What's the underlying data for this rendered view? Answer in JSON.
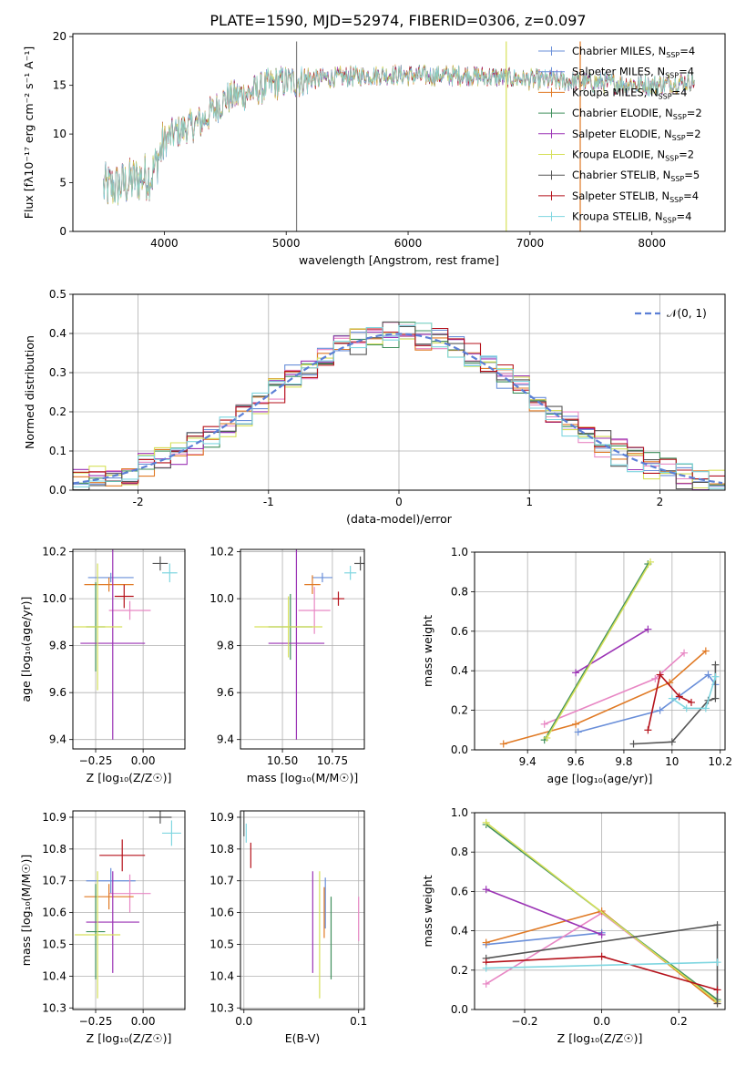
{
  "figure_title": "PLATE=1590, MJD=52974, FIBERID=0306, z=0.097",
  "models": [
    {
      "name": "Chabrier MILES",
      "nssp": "4",
      "color": "#6a8fd9"
    },
    {
      "name": "Salpeter MILES",
      "nssp": "4",
      "color": "#6a8fd9"
    },
    {
      "name": "Kroupa MILES",
      "nssp": "4",
      "color": "#e07a25"
    },
    {
      "name": "Chabrier ELODIE",
      "nssp": "2",
      "color": "#3f8f5c"
    },
    {
      "name": "Salpeter ELODIE",
      "nssp": "2",
      "color": "#9b33b5"
    },
    {
      "name": "Kroupa ELODIE",
      "nssp": "2",
      "color": "#d6e05a"
    },
    {
      "name": "Chabrier STELIB",
      "nssp": "5",
      "color": "#555555"
    },
    {
      "name": "Salpeter STELIB",
      "nssp": "4",
      "color": "#b5121b"
    },
    {
      "name": "Kroupa STELIB",
      "nssp": "4",
      "color": "#7fd6e0"
    }
  ],
  "chart_data": [
    {
      "id": "spectrum",
      "type": "line",
      "title": "PLATE=1590, MJD=52974, FIBERID=0306, z=0.097",
      "xlabel": "wavelength [Angstrom, rest frame]",
      "ylabel": "Flux [fλ10⁻¹⁷ erg cm⁻² s⁻¹ A⁻¹]",
      "xlim": [
        3250,
        8600
      ],
      "ylim": [
        0,
        20.3
      ],
      "xticks": [
        4000,
        5000,
        6000,
        7000,
        8000
      ],
      "yticks": [
        0,
        5,
        10,
        15,
        20
      ],
      "continuum": [
        [
          3500,
          4.5
        ],
        [
          3650,
          4.7
        ],
        [
          3800,
          5.5
        ],
        [
          3900,
          5.8
        ],
        [
          4000,
          9.3
        ],
        [
          4100,
          10.2
        ],
        [
          4300,
          11.2
        ],
        [
          4500,
          13.6
        ],
        [
          4700,
          14.2
        ],
        [
          4900,
          15.2
        ],
        [
          5200,
          15.6
        ],
        [
          5500,
          15.9
        ],
        [
          5800,
          16.1
        ],
        [
          6100,
          16.0
        ],
        [
          6500,
          16.0
        ],
        [
          7000,
          15.6
        ],
        [
          7500,
          15.3
        ],
        [
          8000,
          15.0
        ],
        [
          8350,
          15.4
        ]
      ],
      "spikes": [
        [
          5080,
          0
        ],
        [
          5090,
          0
        ],
        [
          6800,
          0
        ],
        [
          6810,
          0
        ],
        [
          7410,
          0
        ],
        [
          7415,
          0
        ]
      ],
      "grid": false,
      "legend": "top-right"
    },
    {
      "id": "residuals",
      "type": "line",
      "xlabel": "(data-model)/error",
      "ylabel": "Normed distribution",
      "xlim": [
        -2.5,
        2.5
      ],
      "ylim": [
        0,
        0.5
      ],
      "xticks": [
        -2,
        -1,
        0,
        1,
        2
      ],
      "yticks": [
        0.0,
        0.1,
        0.2,
        0.3,
        0.4,
        0.5
      ],
      "gaussian_label": "𝒩(0, 1)",
      "grid": true,
      "legend": "top-right"
    },
    {
      "id": "age_vs_Z",
      "type": "scatter",
      "xlabel": "Z [log₁₀(Z/Z☉)]",
      "ylabel": "age  [log₁₀(age/yr)]",
      "xlim": [
        -0.37,
        0.22
      ],
      "ylim": [
        9.36,
        10.21
      ],
      "xticks": [
        -0.25,
        0.0
      ],
      "xticklabels": [
        "−0.25",
        "0.00"
      ],
      "yticks": [
        9.4,
        9.6,
        9.8,
        10.0,
        10.2
      ],
      "points": [
        {
          "m": 0,
          "x": -0.17,
          "y": 10.09,
          "xe": 0.12,
          "ye": 0.02
        },
        {
          "m": 1,
          "x": -0.07,
          "y": 9.95,
          "xe": 0.11,
          "ye": 0.04
        },
        {
          "m": 2,
          "x": -0.18,
          "y": 10.06,
          "xe": 0.13,
          "ye": 0.03
        },
        {
          "m": 3,
          "x": -0.25,
          "y": 9.88,
          "xe": 0.05,
          "ye": 0.19
        },
        {
          "m": 4,
          "x": -0.16,
          "y": 9.81,
          "xe": 0.17,
          "ye": 0.41
        },
        {
          "m": 5,
          "x": -0.24,
          "y": 9.88,
          "xe": 0.13,
          "ye": 0.27
        },
        {
          "m": 6,
          "x": 0.09,
          "y": 10.15,
          "xe": 0.04,
          "ye": 0.03
        },
        {
          "m": 7,
          "x": -0.1,
          "y": 10.01,
          "xe": 0.05,
          "ye": 0.05
        },
        {
          "m": 8,
          "x": 0.14,
          "y": 10.11,
          "xe": 0.04,
          "ye": 0.04
        }
      ],
      "grid": true
    },
    {
      "id": "age_vs_mass",
      "type": "scatter",
      "xlabel": "mass [log₁₀(M/M☉)]",
      "ylabel": "",
      "xlim": [
        10.29,
        10.91
      ],
      "ylim": [
        9.36,
        10.21
      ],
      "xticks": [
        10.5,
        10.75
      ],
      "xticklabels": [
        "10.50",
        "10.75"
      ],
      "yticks": [
        9.4,
        9.6,
        9.8,
        10.0,
        10.2
      ],
      "points": [
        {
          "m": 0,
          "x": 10.7,
          "y": 10.09,
          "xe": 0.05,
          "ye": 0.02
        },
        {
          "m": 1,
          "x": 10.66,
          "y": 9.95,
          "xe": 0.08,
          "ye": 0.1
        },
        {
          "m": 2,
          "x": 10.65,
          "y": 10.06,
          "xe": 0.04,
          "ye": 0.04
        },
        {
          "m": 3,
          "x": 10.54,
          "y": 9.88,
          "xe": 0.11,
          "ye": 0.14
        },
        {
          "m": 4,
          "x": 10.57,
          "y": 9.81,
          "xe": 0.14,
          "ye": 0.41
        },
        {
          "m": 5,
          "x": 10.53,
          "y": 9.88,
          "xe": 0.17,
          "ye": 0.13
        },
        {
          "m": 6,
          "x": 10.89,
          "y": 10.15,
          "xe": 0.03,
          "ye": 0.03
        },
        {
          "m": 7,
          "x": 10.78,
          "y": 10.0,
          "xe": 0.03,
          "ye": 0.03
        },
        {
          "m": 8,
          "x": 10.84,
          "y": 10.11,
          "xe": 0.03,
          "ye": 0.03
        }
      ],
      "grid": true
    },
    {
      "id": "weight_vs_age",
      "type": "line",
      "xlabel": "age  [log₁₀(age/yr)]",
      "ylabel": "mass weight",
      "xlim": [
        9.18,
        10.22
      ],
      "ylim": [
        0,
        1.0
      ],
      "xticks": [
        9.4,
        9.6,
        9.8,
        10.0,
        10.2
      ],
      "yticks": [
        0.0,
        0.2,
        0.4,
        0.6,
        0.8,
        1.0
      ],
      "series": [
        {
          "m": 0,
          "x": [
            9.61,
            9.95,
            10.15,
            10.18
          ],
          "y": [
            0.09,
            0.2,
            0.38,
            0.33
          ]
        },
        {
          "m": 1,
          "x": [
            9.47,
            9.93,
            10.05
          ],
          "y": [
            0.13,
            0.36,
            0.49
          ]
        },
        {
          "m": 2,
          "x": [
            9.3,
            9.6,
            9.99,
            10.14
          ],
          "y": [
            0.03,
            0.13,
            0.34,
            0.5
          ]
        },
        {
          "m": 3,
          "x": [
            9.47,
            9.9
          ],
          "y": [
            0.05,
            0.94
          ]
        },
        {
          "m": 4,
          "x": [
            9.6,
            9.9
          ],
          "y": [
            0.39,
            0.61
          ]
        },
        {
          "m": 5,
          "x": [
            9.48,
            9.91
          ],
          "y": [
            0.06,
            0.95
          ]
        },
        {
          "m": 6,
          "x": [
            9.84,
            10.0,
            10.15,
            10.18,
            10.18
          ],
          "y": [
            0.03,
            0.04,
            0.25,
            0.26,
            0.43
          ]
        },
        {
          "m": 7,
          "x": [
            9.9,
            9.95,
            10.03,
            10.08
          ],
          "y": [
            0.1,
            0.38,
            0.27,
            0.24
          ]
        },
        {
          "m": 8,
          "x": [
            10.0,
            10.06,
            10.14,
            10.18
          ],
          "y": [
            0.26,
            0.21,
            0.21,
            0.37
          ]
        }
      ],
      "grid": true
    },
    {
      "id": "mass_vs_Z",
      "type": "scatter",
      "xlabel": "Z [log₁₀(Z/Z☉)]",
      "ylabel": "mass [log₁₀(M/M☉)]",
      "xlim": [
        -0.37,
        0.22
      ],
      "ylim": [
        10.295,
        10.92
      ],
      "xticks": [
        -0.25,
        0.0
      ],
      "xticklabels": [
        "−0.25",
        "0.00"
      ],
      "yticks": [
        10.3,
        10.4,
        10.5,
        10.6,
        10.7,
        10.8,
        10.9
      ],
      "points": [
        {
          "m": 0,
          "x": -0.17,
          "y": 10.7,
          "xe": 0.13,
          "ye": 0.04
        },
        {
          "m": 1,
          "x": -0.07,
          "y": 10.66,
          "xe": 0.11,
          "ye": 0.06
        },
        {
          "m": 2,
          "x": -0.18,
          "y": 10.65,
          "xe": 0.13,
          "ye": 0.04
        },
        {
          "m": 3,
          "x": -0.25,
          "y": 10.54,
          "xe": 0.05,
          "ye": 0.15
        },
        {
          "m": 4,
          "x": -0.16,
          "y": 10.57,
          "xe": 0.14,
          "ye": 0.16
        },
        {
          "m": 5,
          "x": -0.24,
          "y": 10.53,
          "xe": 0.12,
          "ye": 0.2
        },
        {
          "m": 6,
          "x": 0.09,
          "y": 10.9,
          "xe": 0.06,
          "ye": 0.02
        },
        {
          "m": 7,
          "x": -0.11,
          "y": 10.78,
          "xe": 0.12,
          "ye": 0.05
        },
        {
          "m": 8,
          "x": 0.15,
          "y": 10.85,
          "xe": 0.05,
          "ye": 0.04
        }
      ],
      "grid": true
    },
    {
      "id": "mass_vs_ebv",
      "type": "scatter",
      "xlabel": "E(B-V)",
      "ylabel": "",
      "xlim": [
        -0.003,
        0.105
      ],
      "ylim": [
        10.295,
        10.92
      ],
      "xticks": [
        0.0,
        0.1
      ],
      "xticklabels": [
        "0.0",
        "0.1"
      ],
      "yticks": [
        10.3,
        10.4,
        10.5,
        10.6,
        10.7,
        10.8,
        10.9
      ],
      "points": [
        {
          "m": 0,
          "x": 0.071,
          "y": 10.63,
          "xe": 0,
          "ye": 0.08
        },
        {
          "m": 1,
          "x": 0.1,
          "y": 10.58,
          "xe": 0,
          "ye": 0.07
        },
        {
          "m": 2,
          "x": 0.07,
          "y": 10.6,
          "xe": 0,
          "ye": 0.08
        },
        {
          "m": 3,
          "x": 0.076,
          "y": 10.52,
          "xe": 0,
          "ye": 0.13
        },
        {
          "m": 4,
          "x": 0.06,
          "y": 10.57,
          "xe": 0,
          "ye": 0.16
        },
        {
          "m": 5,
          "x": 0.066,
          "y": 10.53,
          "xe": 0,
          "ye": 0.2
        },
        {
          "m": 6,
          "x": 0.0,
          "y": 10.88,
          "xe": 0,
          "ye": 0.04
        },
        {
          "m": 7,
          "x": 0.006,
          "y": 10.78,
          "xe": 0,
          "ye": 0.04
        },
        {
          "m": 8,
          "x": 0.002,
          "y": 10.85,
          "xe": 0,
          "ye": 0.03
        }
      ],
      "grid": true
    },
    {
      "id": "weight_vs_Z",
      "type": "line",
      "xlabel": "Z [log₁₀(Z/Z☉)]",
      "ylabel": "mass weight",
      "xlim": [
        -0.33,
        0.32
      ],
      "ylim": [
        0,
        1.0
      ],
      "xticks": [
        -0.2,
        0.0,
        0.2
      ],
      "xticklabels": [
        "−0.2",
        "0.0",
        "0.2"
      ],
      "yticks": [
        0.0,
        0.2,
        0.4,
        0.6,
        0.8,
        1.0
      ],
      "series": [
        {
          "m": 0,
          "x": [
            -0.3,
            0.0
          ],
          "y": [
            0.33,
            0.39
          ]
        },
        {
          "m": 1,
          "x": [
            -0.3,
            0.0,
            0.3
          ],
          "y": [
            0.13,
            0.49,
            0.04
          ]
        },
        {
          "m": 2,
          "x": [
            -0.3,
            0.0,
            0.3
          ],
          "y": [
            0.34,
            0.5,
            0.03
          ]
        },
        {
          "m": 3,
          "x": [
            -0.3,
            0.3
          ],
          "y": [
            0.94,
            0.05
          ]
        },
        {
          "m": 4,
          "x": [
            -0.3,
            0.0
          ],
          "y": [
            0.61,
            0.38
          ]
        },
        {
          "m": 5,
          "x": [
            -0.3,
            0.3
          ],
          "y": [
            0.95,
            0.04
          ]
        },
        {
          "m": 6,
          "x": [
            -0.3,
            0.3,
            0.3
          ],
          "y": [
            0.26,
            0.43,
            0.03
          ]
        },
        {
          "m": 7,
          "x": [
            -0.3,
            0.0,
            0.3
          ],
          "y": [
            0.24,
            0.27,
            0.1
          ]
        },
        {
          "m": 8,
          "x": [
            -0.3,
            0.3
          ],
          "y": [
            0.21,
            0.24
          ]
        }
      ],
      "grid": true
    }
  ]
}
